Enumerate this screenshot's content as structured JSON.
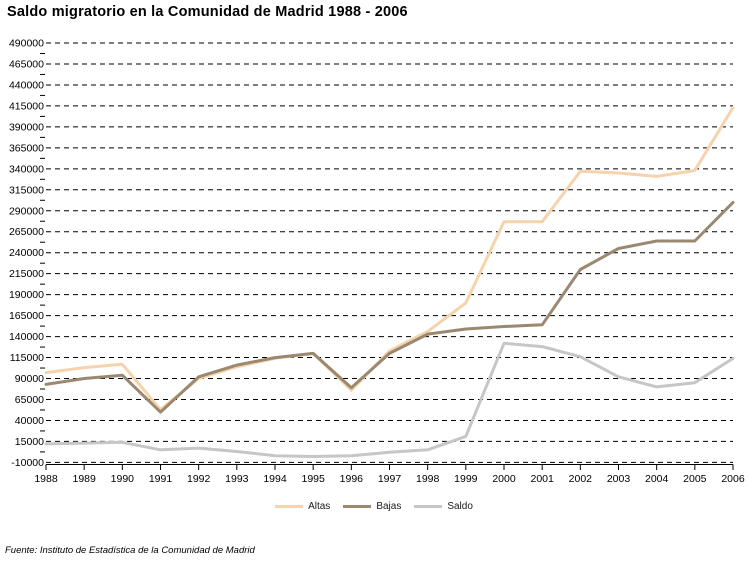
{
  "page": {
    "source": "Fuente: Instituto de Estadística de la Comunidad de Madrid"
  },
  "chart_data": {
    "type": "line",
    "title": "Saldo migratorio en la Comunidad de Madrid 1988 - 2006",
    "x": [
      1988,
      1989,
      1990,
      1991,
      1992,
      1993,
      1994,
      1995,
      1996,
      1997,
      1998,
      1999,
      2000,
      2001,
      2002,
      2003,
      2004,
      2005,
      2006
    ],
    "series": [
      {
        "name": "Altas",
        "color": "#F5D3AC",
        "values": [
          97000,
          103000,
          107000,
          53000,
          90000,
          104000,
          114000,
          120000,
          76000,
          123000,
          146000,
          180000,
          277000,
          277000,
          337000,
          335000,
          331000,
          338000,
          413000
        ]
      },
      {
        "name": "Bajas",
        "color": "#9A886F",
        "values": [
          83000,
          90000,
          94000,
          50000,
          92000,
          106000,
          115000,
          120000,
          79000,
          120000,
          143000,
          149000,
          152000,
          154000,
          220000,
          245000,
          254000,
          254000,
          300000
        ]
      },
      {
        "name": "Saldo",
        "color": "#C6C6C6",
        "values": [
          12000,
          13000,
          14000,
          5000,
          7000,
          3000,
          -2000,
          -3000,
          -2000,
          2000,
          5000,
          21000,
          132000,
          128000,
          116000,
          92000,
          80000,
          85000,
          114000
        ]
      }
    ],
    "ylim": [
      -10000,
      490000
    ],
    "ytick_step": 25000,
    "yticks": [
      490000,
      465000,
      440000,
      415000,
      390000,
      365000,
      340000,
      315000,
      290000,
      265000,
      240000,
      215000,
      190000,
      165000,
      140000,
      115000,
      90000,
      65000,
      40000,
      15000,
      -10000
    ],
    "grid": "horizontal-dashed",
    "legend_position": "bottom-center",
    "axis_color": "#000000",
    "tick_label_color": "#000000"
  }
}
